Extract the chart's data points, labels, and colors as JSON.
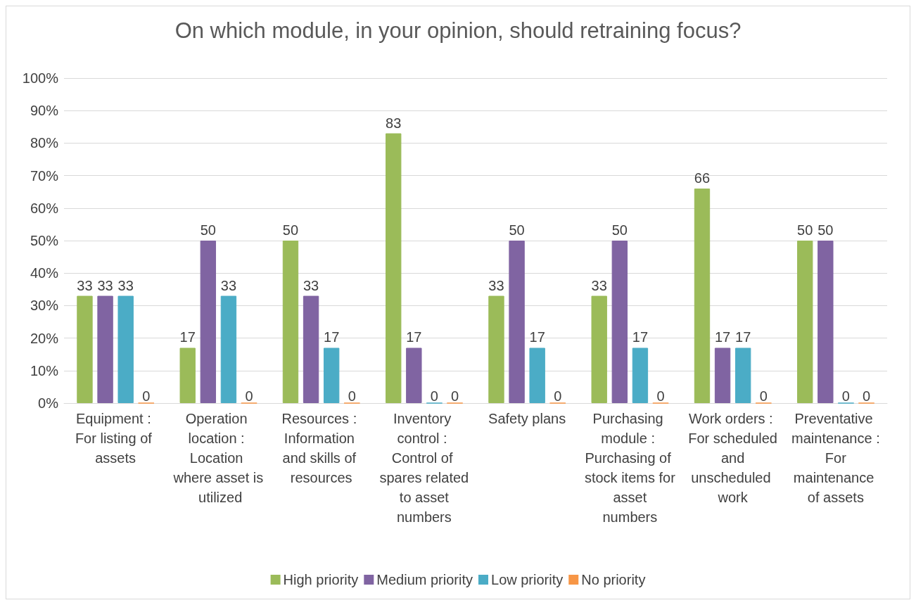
{
  "chart_data": {
    "type": "bar",
    "title": "On which module, in your opinion, should retraining focus?",
    "categories": [
      "Equipment : For listing of assets",
      "Operation location : Location where asset is utilized",
      "Resources : Information and skills of resources",
      "Inventory control : Control of spares related to asset numbers",
      "Safety plans",
      "Purchasing module : Purchasing of stock items for asset numbers",
      "Work orders : For scheduled and unscheduled work",
      "Preventative maintenance : For maintenance of assets"
    ],
    "series": [
      {
        "name": "High priority",
        "color": "#9bbb59",
        "values": [
          33,
          17,
          50,
          83,
          33,
          33,
          66,
          50
        ]
      },
      {
        "name": "Medium priority",
        "color": "#8064a2",
        "values": [
          33,
          50,
          33,
          17,
          50,
          50,
          17,
          50
        ]
      },
      {
        "name": "Low priority",
        "color": "#4bacc6",
        "values": [
          33,
          33,
          17,
          0,
          17,
          17,
          17,
          0
        ]
      },
      {
        "name": "No priority",
        "color": "#f79646",
        "values": [
          0,
          0,
          0,
          0,
          0,
          0,
          0,
          0
        ]
      }
    ],
    "ylim": [
      0,
      100
    ],
    "yticks": [
      {
        "value": 0,
        "label": "0%"
      },
      {
        "value": 10,
        "label": "10%"
      },
      {
        "value": 20,
        "label": "20%"
      },
      {
        "value": 30,
        "label": "30%"
      },
      {
        "value": 40,
        "label": "40%"
      },
      {
        "value": 50,
        "label": "50%"
      },
      {
        "value": 60,
        "label": "60%"
      },
      {
        "value": 70,
        "label": "70%"
      },
      {
        "value": 80,
        "label": "80%"
      },
      {
        "value": 90,
        "label": "90%"
      },
      {
        "value": 100,
        "label": "100%"
      }
    ],
    "grid": "y",
    "legend": "bottom",
    "data_labels": true
  }
}
